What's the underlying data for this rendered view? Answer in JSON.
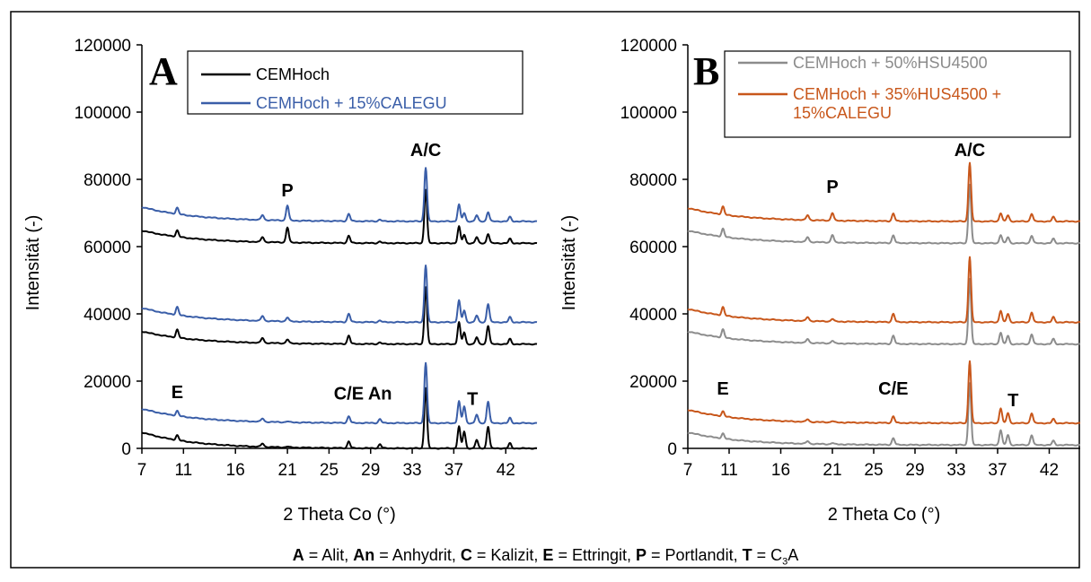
{
  "footer": {
    "items": [
      {
        "key": "A",
        "value": "Alit"
      },
      {
        "key": "An",
        "value": "Anhydrit"
      },
      {
        "key": "C",
        "value": "Kalizit"
      },
      {
        "key": "E",
        "value": "Ettringit"
      },
      {
        "key": "P",
        "value": "Portlandit"
      },
      {
        "key": "T",
        "value": "C3A",
        "html": "C<sub>3</sub>A"
      }
    ]
  },
  "chart_data": [
    {
      "type": "line",
      "panel": "A",
      "xlabel": "2 Theta Co (°)",
      "ylabel": "Intensität (-)",
      "xlim": [
        7,
        45
      ],
      "ylim": [
        0,
        120000
      ],
      "xticks": [
        7,
        11,
        16,
        21,
        25,
        29,
        33,
        37,
        42
      ],
      "yticks": [
        0,
        20000,
        40000,
        60000,
        80000,
        100000,
        120000
      ],
      "legend_position": "top-right",
      "series": [
        {
          "name": "CEMHoch",
          "color": "#000000",
          "offsets": [
            0,
            31000,
            61000
          ],
          "start_values": [
            4800,
            34800,
            64800
          ]
        },
        {
          "name": "CEMHoch + 15%CALEGU",
          "color": "#3a5ea8",
          "offsets": [
            7500,
            37500,
            67500
          ],
          "start_values": [
            11800,
            41800,
            71800
          ]
        }
      ],
      "peaks": [
        {
          "x": 10.4,
          "h": [
            1500,
            2400,
            1900
          ]
        },
        {
          "x": 18.6,
          "h": [
            1000,
            1500,
            1500
          ]
        },
        {
          "x": 21.0,
          "h": [
            300,
            1200,
            4500
          ]
        },
        {
          "x": 26.9,
          "h": [
            2000,
            2500,
            2200
          ]
        },
        {
          "x": 29.9,
          "h": [
            1200,
            500,
            500
          ]
        },
        {
          "x": 34.3,
          "h": [
            18000,
            17000,
            16000
          ]
        },
        {
          "x": 37.5,
          "h": [
            6500,
            6500,
            5000
          ]
        },
        {
          "x": 38.0,
          "h": [
            5000,
            3500,
            2500
          ]
        },
        {
          "x": 39.2,
          "h": [
            2500,
            2000,
            1800
          ]
        },
        {
          "x": 40.3,
          "h": [
            6500,
            5500,
            2800
          ]
        },
        {
          "x": 42.4,
          "h": [
            1500,
            1500,
            1300
          ]
        }
      ],
      "annotations": [
        {
          "text": "P",
          "x": 21.0,
          "y": 75000
        },
        {
          "text": "A/C",
          "x": 34.3,
          "y": 87000
        },
        {
          "text": "E",
          "x": 10.4,
          "y": 15000
        },
        {
          "text": "C/E",
          "x": 26.9,
          "y": 14500
        },
        {
          "text": "An",
          "x": 29.9,
          "y": 14500
        },
        {
          "text": "T",
          "x": 38.8,
          "y": 13000
        }
      ]
    },
    {
      "type": "line",
      "panel": "B",
      "xlabel": "2 Theta Co (°)",
      "ylabel": "Intensität (-)",
      "xlim": [
        7,
        45
      ],
      "ylim": [
        0,
        120000
      ],
      "xticks": [
        7,
        11,
        16,
        21,
        25,
        29,
        33,
        37,
        42
      ],
      "yticks": [
        0,
        20000,
        40000,
        60000,
        80000,
        100000,
        120000
      ],
      "legend_position": "top-right",
      "series": [
        {
          "name": "CEMHoch + 50%HSU4500",
          "color": "#8c8c8c",
          "offsets": [
            1000,
            31000,
            61000
          ],
          "start_values": [
            4800,
            34800,
            64800
          ]
        },
        {
          "name": "CEMHoch + 35%HUS4500 + 15%CALEGU",
          "color": "#c8571b",
          "offsets": [
            7500,
            37500,
            67500
          ],
          "start_values": [
            11500,
            41500,
            71500
          ]
        }
      ],
      "peaks": [
        {
          "x": 10.4,
          "h": [
            1500,
            2500,
            2400
          ]
        },
        {
          "x": 18.6,
          "h": [
            800,
            1200,
            1500
          ]
        },
        {
          "x": 21.0,
          "h": [
            400,
            800,
            2300
          ]
        },
        {
          "x": 26.9,
          "h": [
            2000,
            2500,
            2300
          ]
        },
        {
          "x": 34.3,
          "h": [
            18500,
            19500,
            17500
          ]
        },
        {
          "x": 37.3,
          "h": [
            4500,
            3500,
            2500
          ]
        },
        {
          "x": 38.0,
          "h": [
            3000,
            2500,
            1800
          ]
        },
        {
          "x": 40.3,
          "h": [
            3000,
            3000,
            2300
          ]
        },
        {
          "x": 42.4,
          "h": [
            1200,
            1500,
            1300
          ]
        }
      ],
      "annotations": [
        {
          "text": "P",
          "x": 21.0,
          "y": 76000
        },
        {
          "text": "A/C",
          "x": 34.3,
          "y": 87000
        },
        {
          "text": "E",
          "x": 10.4,
          "y": 16000
        },
        {
          "text": "C/E",
          "x": 26.9,
          "y": 16000
        },
        {
          "text": "T",
          "x": 38.5,
          "y": 12500
        }
      ]
    }
  ]
}
